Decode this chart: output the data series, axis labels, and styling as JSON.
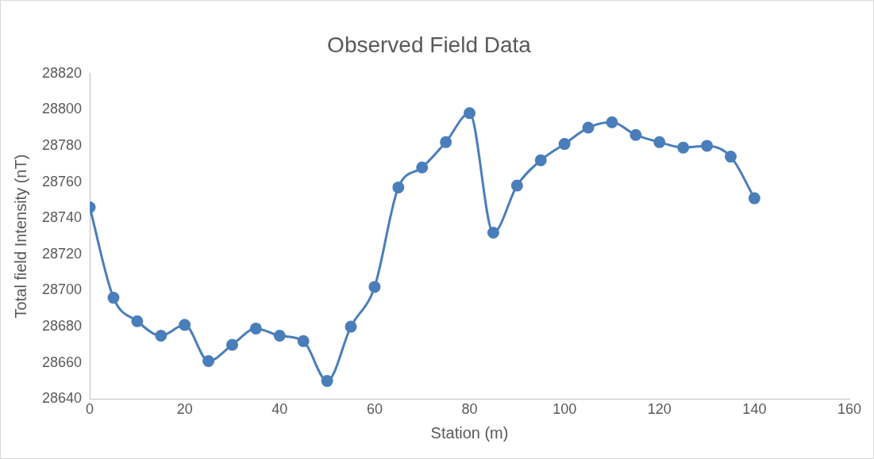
{
  "chart_data": {
    "type": "line",
    "title": "Observed Field Data",
    "xlabel": "Station (m)",
    "ylabel": "Total field Intensity (nT)",
    "x": [
      0,
      5,
      10,
      15,
      20,
      25,
      30,
      35,
      40,
      45,
      50,
      55,
      60,
      65,
      70,
      75,
      80,
      85,
      90,
      95,
      100,
      105,
      110,
      115,
      120,
      125,
      130,
      135,
      140
    ],
    "series": [
      {
        "color": "#4a7ebb",
        "values": [
          28746,
          28696,
          28683,
          28675,
          28681,
          28661,
          28670,
          28679,
          28675,
          28672,
          28650,
          28680,
          28702,
          28757,
          28768,
          28782,
          28798,
          28732,
          28758,
          28772,
          28781,
          28790,
          28793,
          28786,
          28782,
          28779,
          28780,
          28774,
          28751
        ]
      }
    ],
    "xlim": [
      0,
      160
    ],
    "xticks": [
      0,
      20,
      40,
      60,
      80,
      100,
      120,
      140,
      160
    ],
    "ylim": [
      28640,
      28820
    ],
    "yticks": [
      28640,
      28660,
      28680,
      28700,
      28720,
      28740,
      28760,
      28780,
      28800,
      28820
    ],
    "grid": false,
    "legend": false,
    "marker": "circle",
    "line_style": "solid"
  }
}
